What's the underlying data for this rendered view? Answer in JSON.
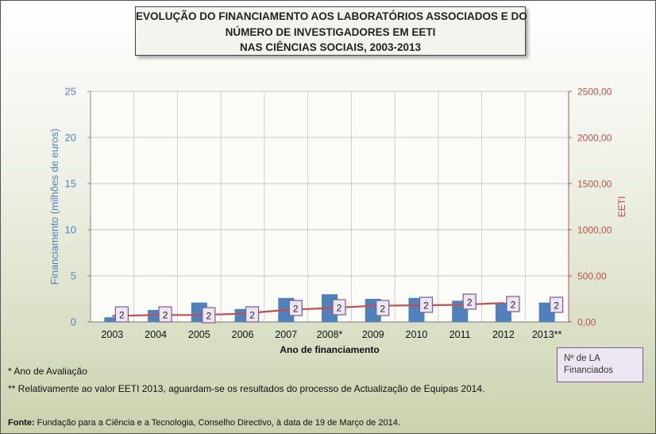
{
  "title": {
    "line1": "EVOLUÇÃO DO FINANCIAMENTO AOS LABORATÓRIOS ASSOCIADOS E DO",
    "line2": "NÚMERO DE INVESTIGADORES EM EETI",
    "line3": "NAS CIÊNCIAS SOCIAIS, 2003-2013"
  },
  "notes": {
    "avaliacao": "* Ano de Avaliação",
    "eeti2013": "** Relativamente ao valor EETI 2013, aguardam-se os resultados do processo de Actualização de Equipas 2014."
  },
  "source": {
    "label": "Fonte:",
    "text": " Fundação para a Ciência e a Tecnologia, Conselho Directivo, à data de 19 de Março de 2014."
  },
  "legend_box": {
    "line1": "Nº de LA",
    "line2": "Financiados"
  },
  "colors": {
    "bars": "#4f81bd",
    "line": "#c0504d",
    "left_axis_text": "#4f81bd",
    "right_axis_text": "#c0504d",
    "label_box_border": "#7a5a92",
    "label_box_fill": "#ede6f2"
  },
  "chart_data": {
    "type": "bar",
    "xlabel": "Ano de financiamento",
    "ylabel": "Financiamento (milhões de euros)",
    "y2label": "EETI",
    "ylim": [
      0,
      25
    ],
    "y2lim": [
      0,
      2500
    ],
    "yticks": [
      "0",
      "5",
      "10",
      "15",
      "20",
      "25"
    ],
    "y2ticks": [
      "0,00",
      "500,00",
      "1000,00",
      "1500,00",
      "2000,00",
      "2500,00"
    ],
    "grid": true,
    "categories": [
      "2003",
      "2004",
      "2005",
      "2006",
      "2007",
      "2008*",
      "2009",
      "2010",
      "2011",
      "2012",
      "2013**"
    ],
    "series": [
      {
        "values": [
          0.5,
          1.3,
          2.1,
          1.4,
          2.6,
          3.0,
          2.5,
          2.6,
          2.3,
          2.1,
          2.1
        ]
      },
      {
        "name": "EETI",
        "axis": "right",
        "type": "line",
        "values": [
          65,
          75,
          75,
          90,
          130,
          150,
          175,
          180,
          185,
          205,
          null
        ]
      },
      {
        "name": "Nº de LA Financiados",
        "type": "labels",
        "values": [
          2,
          2,
          2,
          2,
          2,
          2,
          2,
          2,
          2,
          2,
          2
        ]
      }
    ]
  }
}
